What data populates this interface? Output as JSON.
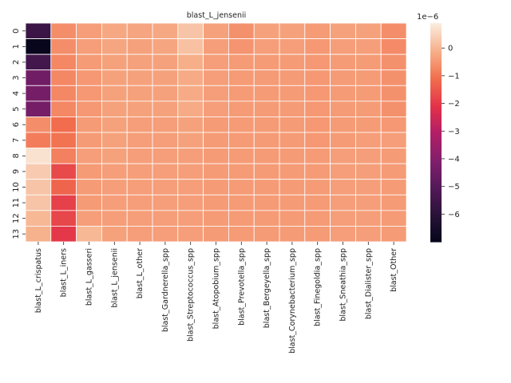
{
  "chart_data": {
    "type": "heatmap",
    "title": "blast_L_jensenii",
    "xlabel": "",
    "ylabel": "",
    "rows": [
      "0",
      "1",
      "2",
      "3",
      "4",
      "5",
      "6",
      "7",
      "8",
      "9",
      "10",
      "11",
      "12",
      "13"
    ],
    "columns": [
      "blast_L_crispatus",
      "blast_L_iners",
      "blast_L_gasseri",
      "blast_L_jensenii",
      "blast_L_other",
      "blast_Gardnerella_spp",
      "blast_Streptococcus_spp",
      "blast_Atopobium_spp",
      "blast_Prevotella_spp",
      "blast_Bergeyella_spp",
      "blast_Corynebacterium_spp",
      "blast_Finegoldia_spp",
      "blast_Sneathia_spp",
      "blast_Dialister_spp",
      "blast_Other"
    ],
    "values": [
      [
        -5.6,
        -0.6,
        -0.35,
        -0.2,
        -0.25,
        -0.2,
        0.25,
        -0.3,
        -0.55,
        -0.3,
        -0.3,
        -0.4,
        -0.3,
        -0.3,
        -0.6
      ],
      [
        -6.9,
        -0.6,
        -0.35,
        -0.25,
        -0.3,
        -0.25,
        0.2,
        -0.35,
        -0.5,
        -0.35,
        -0.35,
        -0.45,
        -0.35,
        -0.35,
        -0.65
      ],
      [
        -5.4,
        -0.7,
        -0.4,
        -0.3,
        -0.3,
        -0.3,
        -0.1,
        -0.35,
        -0.4,
        -0.4,
        -0.4,
        -0.45,
        -0.4,
        -0.4,
        -0.55
      ],
      [
        -4.4,
        -0.7,
        -0.45,
        -0.3,
        -0.3,
        -0.3,
        -0.15,
        -0.35,
        -0.4,
        -0.4,
        -0.4,
        -0.45,
        -0.4,
        -0.4,
        -0.55
      ],
      [
        -4.3,
        -0.7,
        -0.45,
        -0.3,
        -0.3,
        -0.3,
        -0.15,
        -0.35,
        -0.4,
        -0.4,
        -0.4,
        -0.45,
        -0.4,
        -0.4,
        -0.55
      ],
      [
        -4.3,
        -0.7,
        -0.45,
        -0.3,
        -0.3,
        -0.3,
        -0.15,
        -0.35,
        -0.4,
        -0.4,
        -0.4,
        -0.45,
        -0.4,
        -0.4,
        -0.55
      ],
      [
        -0.6,
        -1.1,
        -0.4,
        -0.3,
        -0.35,
        -0.35,
        -0.3,
        -0.4,
        -0.4,
        -0.4,
        -0.4,
        -0.45,
        -0.4,
        -0.4,
        -0.45
      ],
      [
        -0.85,
        -1.0,
        -0.4,
        -0.3,
        -0.35,
        -0.35,
        -0.3,
        -0.4,
        -0.4,
        -0.4,
        -0.4,
        -0.45,
        -0.4,
        -0.35,
        -0.35
      ],
      [
        0.75,
        -0.8,
        -0.35,
        -0.3,
        -0.35,
        -0.35,
        -0.35,
        -0.4,
        -0.4,
        -0.4,
        -0.4,
        -0.4,
        -0.35,
        -0.35,
        -0.4
      ],
      [
        0.35,
        -1.7,
        -0.4,
        -0.35,
        -0.35,
        -0.35,
        -0.35,
        -0.4,
        -0.4,
        -0.4,
        -0.4,
        -0.4,
        -0.35,
        -0.35,
        -0.4
      ],
      [
        0.25,
        -1.25,
        -0.4,
        -0.35,
        -0.35,
        -0.35,
        -0.35,
        -0.4,
        -0.4,
        -0.4,
        -0.4,
        -0.4,
        -0.35,
        -0.35,
        -0.4
      ],
      [
        0.25,
        -1.85,
        -0.4,
        -0.35,
        -0.35,
        -0.35,
        -0.35,
        -0.4,
        -0.4,
        -0.4,
        -0.4,
        -0.4,
        -0.35,
        -0.35,
        -0.4
      ],
      [
        0.05,
        -1.75,
        -0.35,
        -0.35,
        -0.35,
        -0.35,
        -0.35,
        -0.4,
        -0.4,
        -0.4,
        -0.4,
        -0.4,
        -0.35,
        -0.35,
        -0.4
      ],
      [
        -0.05,
        -2.0,
        0.05,
        -0.3,
        -0.35,
        -0.35,
        -0.35,
        -0.4,
        -0.4,
        -0.4,
        -0.4,
        -0.4,
        -0.35,
        -0.35,
        -0.4
      ]
    ],
    "colorbar": {
      "colormap": "rocket",
      "range": [
        -7.0,
        0.9
      ],
      "ticks": [
        0,
        -1,
        -2,
        -3,
        -4,
        -5,
        -6
      ],
      "tick_labels": [
        "0",
        "−1",
        "−2",
        "−3",
        "−4",
        "−5",
        "−6"
      ],
      "scale_label": "1e−6"
    },
    "grid": true,
    "legend": "right"
  }
}
